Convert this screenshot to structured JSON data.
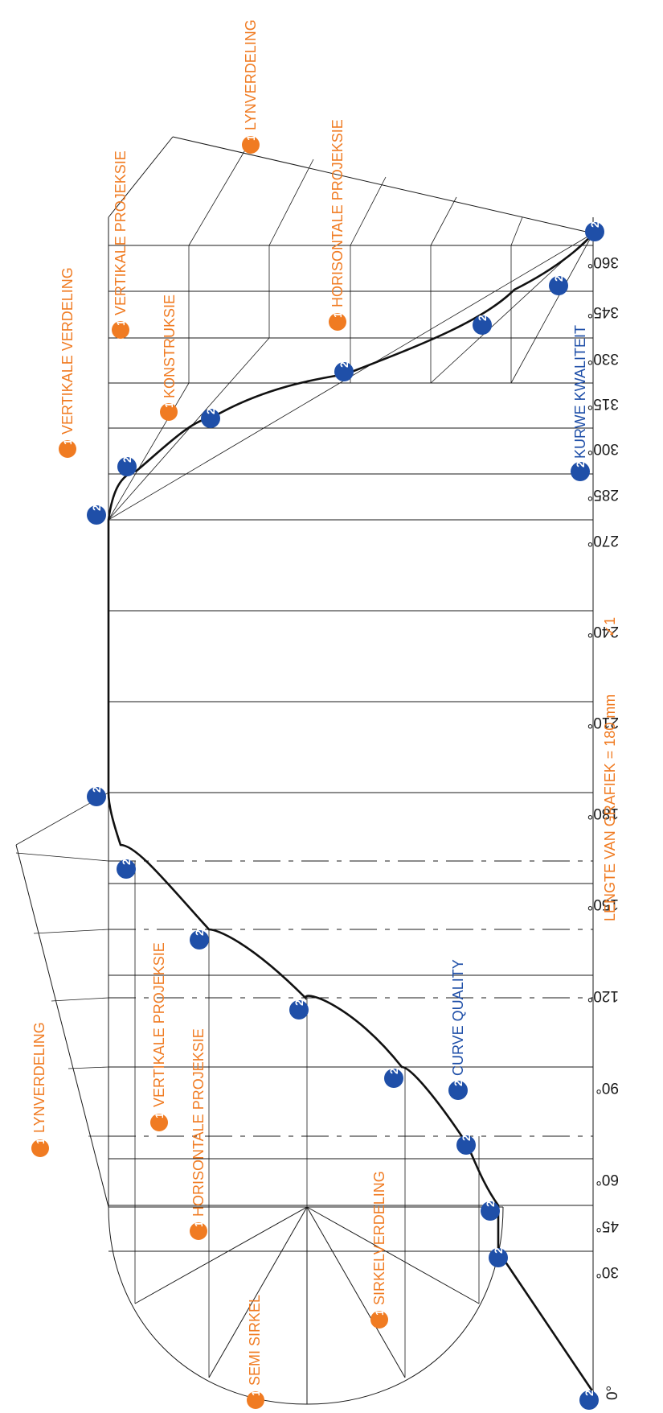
{
  "angles": [
    "0°",
    "30°",
    "45°",
    "60°",
    "90°",
    "120°",
    "150°",
    "180°",
    "210°",
    "240°",
    "270°",
    "285°",
    "300°",
    "315°",
    "330°",
    "345°",
    "360°"
  ],
  "badges": {
    "one": "1",
    "two": "2"
  },
  "labels": {
    "lynverdeling_a": "LYNVERDELING",
    "vertikale_projeksie_a": "VERTIKALE PROJEKSIE",
    "horisontale_projeksie_a": "HORISONTALE PROJEKSIE",
    "semi_sirkel": "SEMI SIRKEL",
    "sirkelverdeling": "SIRKELVERDELING",
    "curve_quality": "CURVE QUALITY",
    "lengte": "LENGTE VAN GRAFIEK = 180 mm",
    "check": "✓1",
    "vertikale_verdeling": "VERTIKALE VERDELING",
    "vertikale_projeksie_b": "VERTIKALE PROJEKSIE",
    "konstruksie": "KONSTRUKSIE",
    "horisontale_projeksie_b": "HORISONTALE PROJEKSIE",
    "lynverdeling_b": "LYNVERDELING",
    "kurwe_kwaliteit": "KURWE KWALITEIT"
  },
  "colors": {
    "accent_orange": "#f07b22",
    "accent_blue": "#1f4fa8",
    "line": "#1a1a1a"
  }
}
